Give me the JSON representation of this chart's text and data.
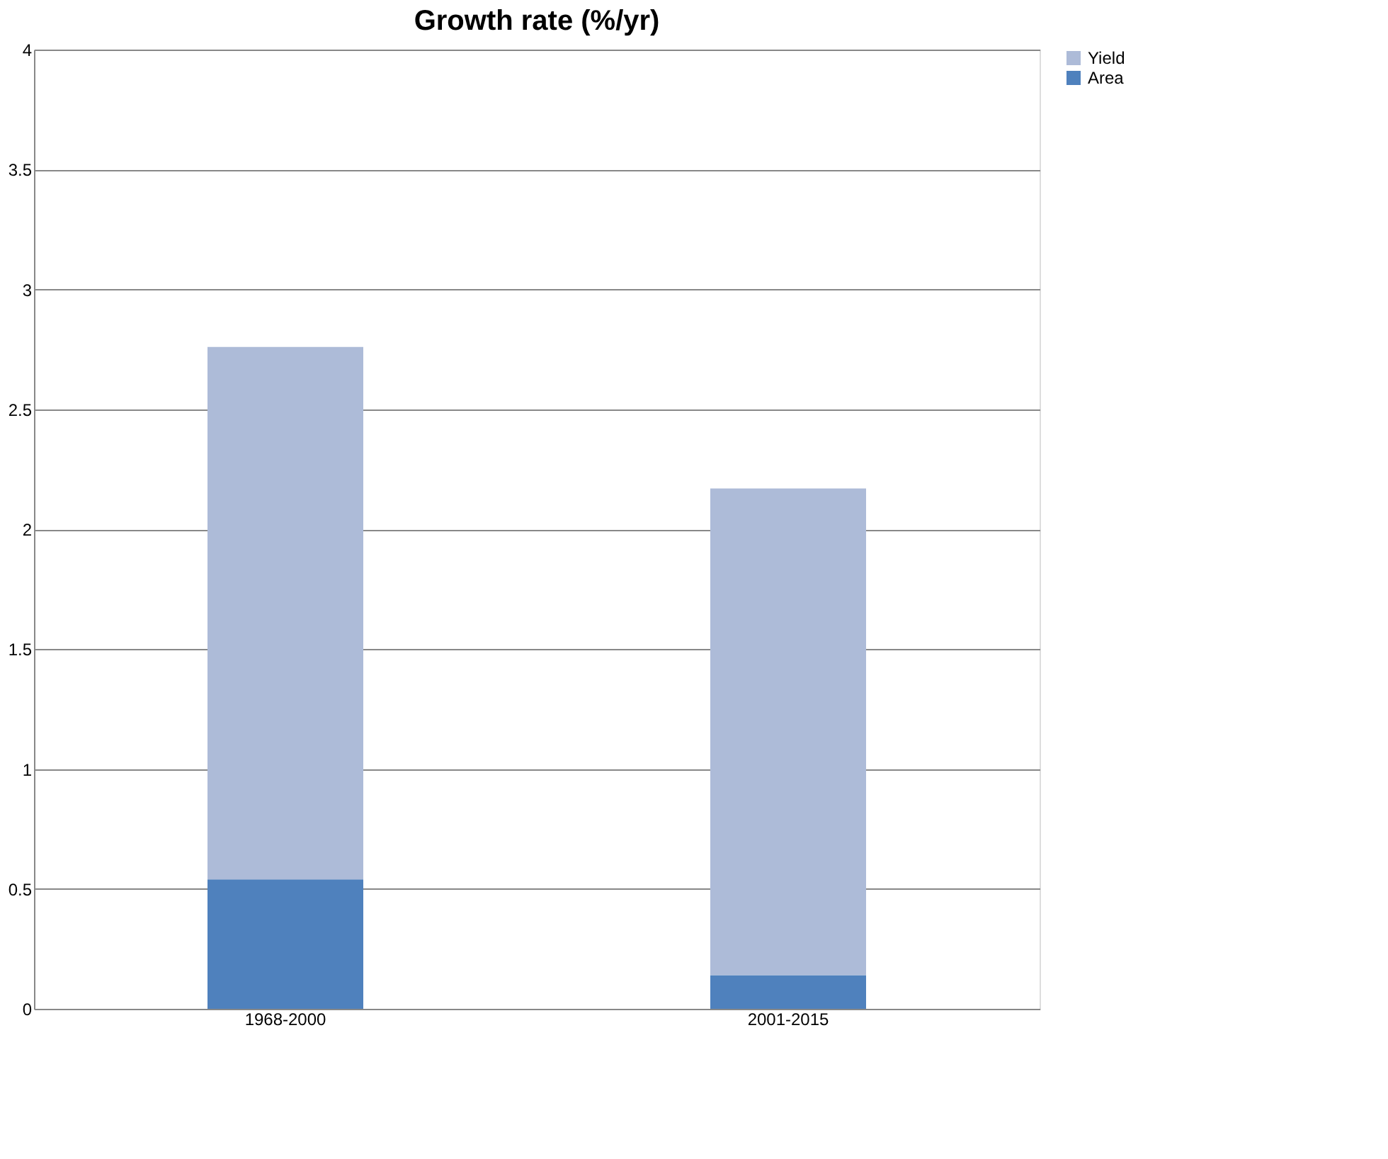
{
  "chart_data": {
    "type": "bar",
    "title": "Growth rate (%/yr)",
    "categories": [
      "1968-2000",
      "2001-2015"
    ],
    "stacked": true,
    "series": [
      {
        "name": "Area",
        "color": "#4f81bd",
        "values": [
          0.54,
          0.14
        ]
      },
      {
        "name": "Yield",
        "color": "#adbbd8",
        "values": [
          2.22,
          2.03
        ]
      }
    ],
    "ylim": [
      0,
      4
    ],
    "yticks": [
      0,
      0.5,
      1,
      1.5,
      2,
      2.5,
      3,
      3.5,
      4
    ],
    "grid": "y",
    "legend": "right"
  }
}
